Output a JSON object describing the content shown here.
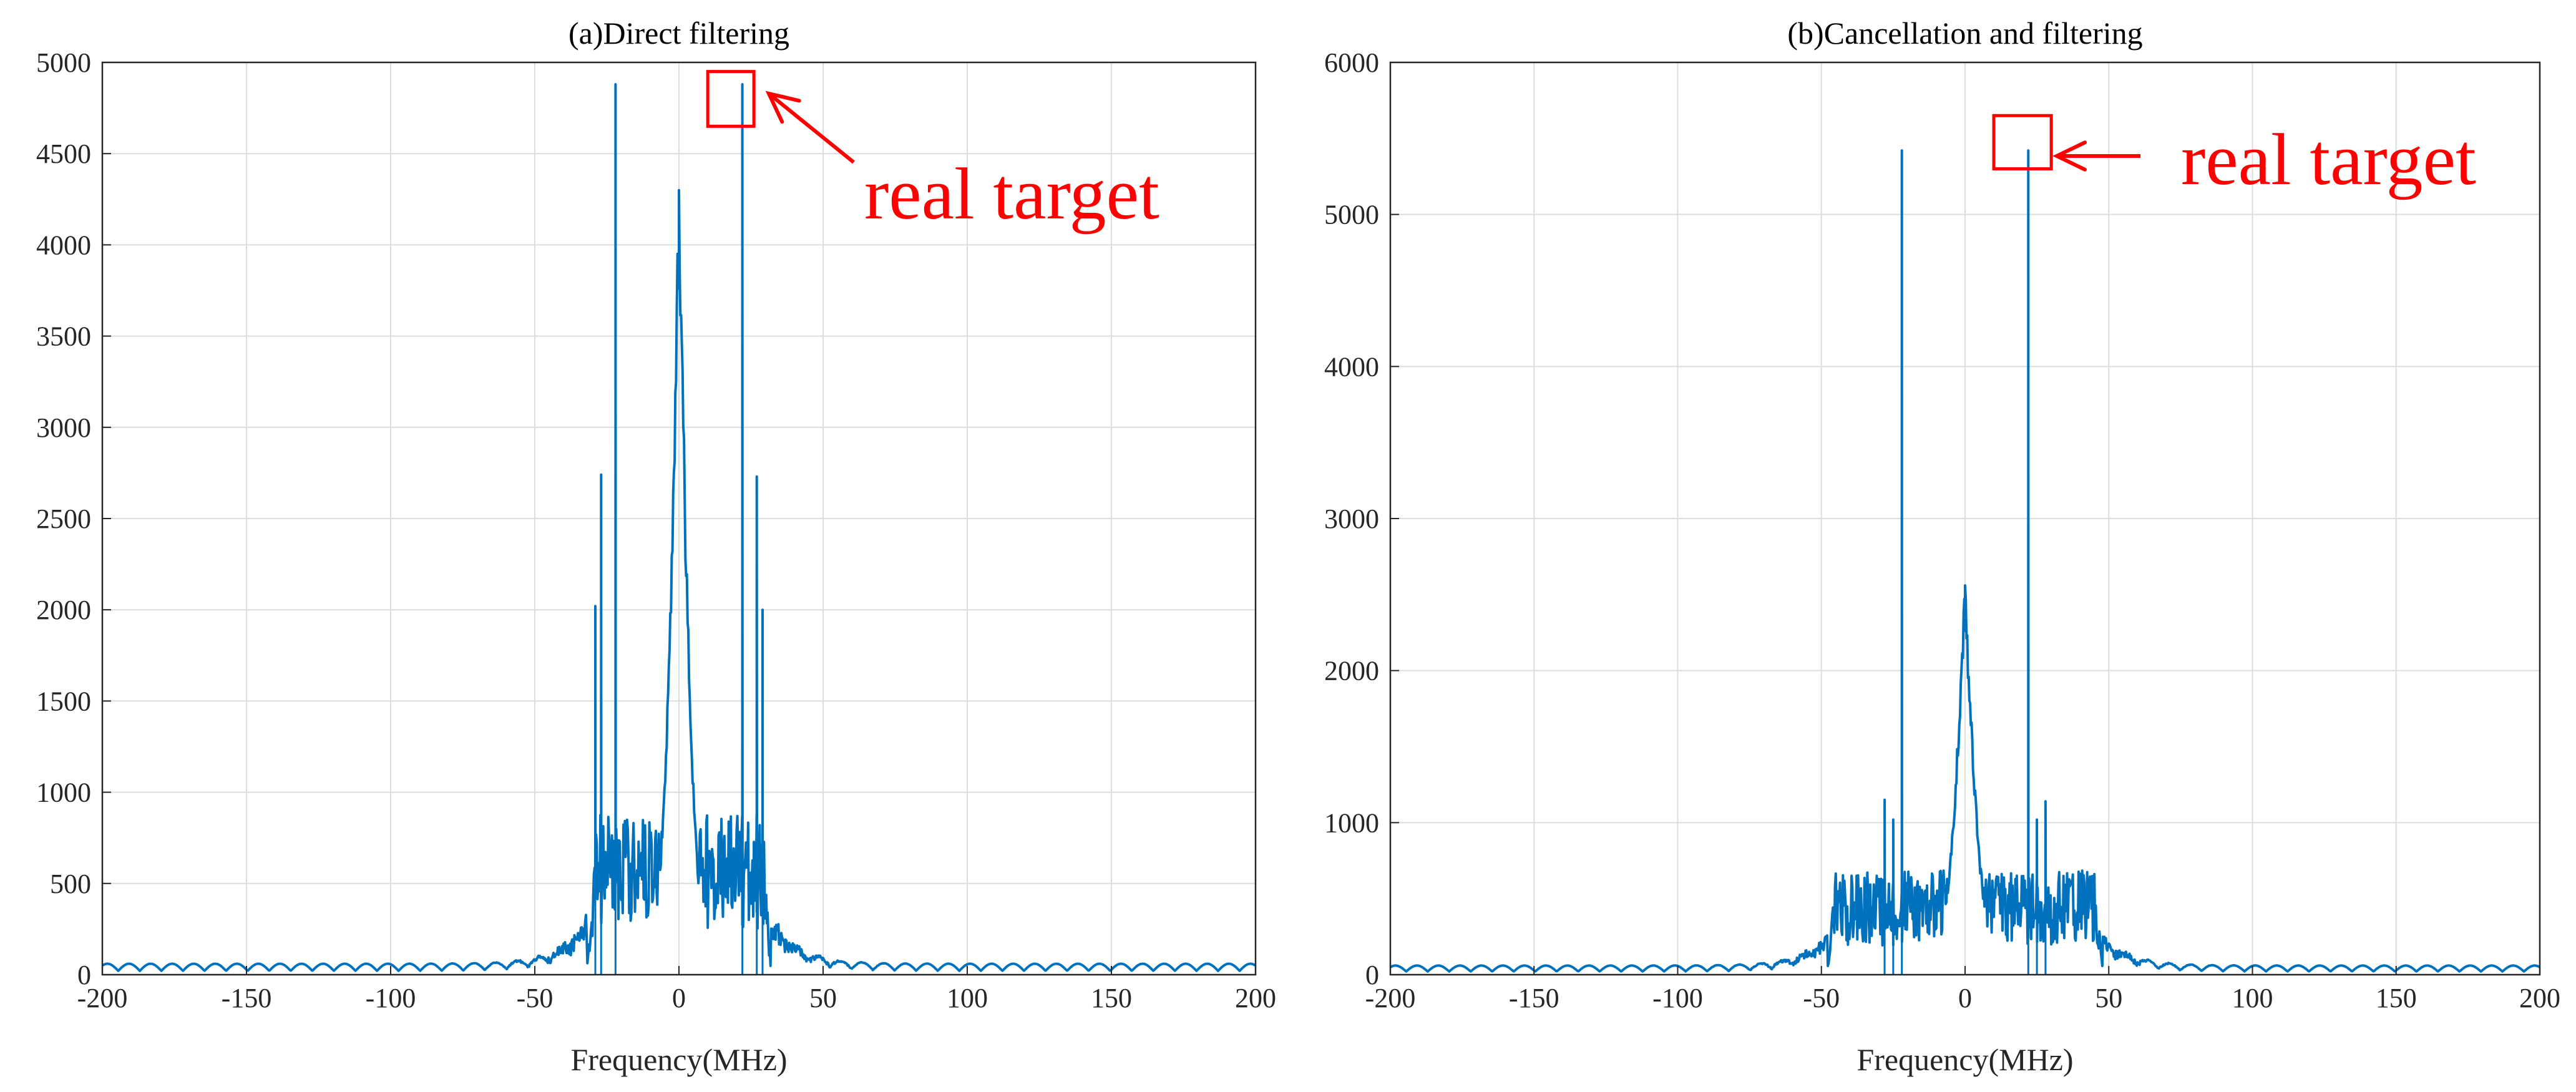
{
  "figure": {
    "panels": [
      {
        "title": "(a)Direct filtering",
        "xlabel": "Frequency(MHz)",
        "annotation": {
          "text": "real target"
        }
      },
      {
        "title": "(b)Cancellation and filtering",
        "xlabel": "Frequency(MHz)",
        "annotation": {
          "text": "real target"
        }
      }
    ]
  },
  "chart_data": [
    {
      "type": "line",
      "title": "(a)Direct filtering",
      "xlabel": "Frequency(MHz)",
      "ylabel": "",
      "xlim": [
        -200,
        200
      ],
      "ylim": [
        0,
        5000
      ],
      "xticks": [
        -200,
        -150,
        -100,
        -50,
        0,
        50,
        100,
        150,
        200
      ],
      "yticks": [
        0,
        500,
        1000,
        1500,
        2000,
        2500,
        3000,
        3500,
        4000,
        4500,
        5000
      ],
      "grid": true,
      "line_color": "#0072BD",
      "annotation": {
        "text": "real target",
        "box_x": [
          10,
          26
        ],
        "box_y": [
          4650,
          4950
        ],
        "color": "#ff0000"
      },
      "features": {
        "floor_amplitude": 60,
        "center_peak": {
          "x": 0,
          "y": 4300
        },
        "center_halfwidth": 12,
        "skirt_range": [
          -32,
          32
        ],
        "skirt_level": 700,
        "spikes": [
          {
            "x": -22,
            "y": 4880
          },
          {
            "x": 22,
            "y": 4880
          },
          {
            "x": -27,
            "y": 2740
          },
          {
            "x": 27,
            "y": 2730
          },
          {
            "x": -29,
            "y": 2020
          },
          {
            "x": 29,
            "y": 2000
          }
        ]
      }
    },
    {
      "type": "line",
      "title": "(b)Cancellation and filtering",
      "xlabel": "Frequency(MHz)",
      "ylabel": "",
      "xlim": [
        -200,
        200
      ],
      "ylim": [
        0,
        6000
      ],
      "xticks": [
        -200,
        -150,
        -100,
        -50,
        0,
        50,
        100,
        150,
        200
      ],
      "yticks": [
        0,
        1000,
        2000,
        3000,
        4000,
        5000,
        6000
      ],
      "grid": true,
      "line_color": "#0072BD",
      "annotation": {
        "text": "real target",
        "box_x": [
          10,
          30
        ],
        "box_y": [
          5300,
          5650
        ],
        "color": "#ff0000"
      },
      "features": {
        "floor_amplitude": 60,
        "center_peak": {
          "x": 0,
          "y": 2560
        },
        "center_halfwidth": 14,
        "skirt_range": [
          -48,
          48
        ],
        "skirt_level": 550,
        "spikes": [
          {
            "x": -22,
            "y": 5420
          },
          {
            "x": 22,
            "y": 5420
          },
          {
            "x": -28,
            "y": 1150
          },
          {
            "x": 28,
            "y": 1140
          },
          {
            "x": -25,
            "y": 1020
          },
          {
            "x": 25,
            "y": 1020
          }
        ]
      }
    }
  ]
}
